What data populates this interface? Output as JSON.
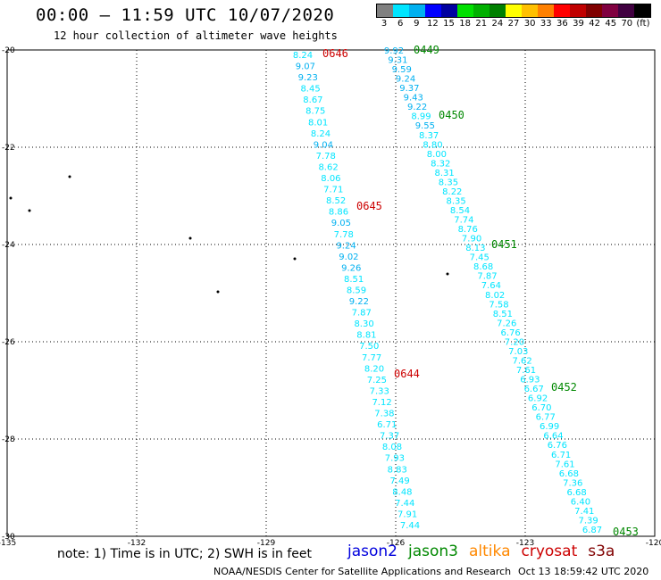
{
  "header": {
    "title": "00:00 — 11:59 UTC 10/07/2020",
    "subtitle": "12 hour collection of altimeter wave heights"
  },
  "legend": {
    "labels": [
      "3",
      "6",
      "9",
      "12",
      "15",
      "18",
      "21",
      "24",
      "27",
      "30",
      "33",
      "36",
      "39",
      "42",
      "45",
      "70",
      "(ft)"
    ],
    "colors": [
      "#808080",
      "#00e5ff",
      "#00b0f0",
      "#0000ff",
      "#0000a0",
      "#00e000",
      "#00b000",
      "#008000",
      "#ffff00",
      "#ffc000",
      "#ff8000",
      "#ff0000",
      "#c00000",
      "#800000",
      "#800040",
      "#400040",
      "#000000"
    ]
  },
  "axes": {
    "lat_labels": [
      "-20",
      "-22",
      "-24",
      "-26",
      "-28",
      "-30"
    ],
    "lon_labels": [
      "-135",
      "-132",
      "-129",
      "-126",
      "-123",
      "-120"
    ],
    "lat_range": [
      -30,
      -20
    ],
    "lon_range": [
      -135,
      -120
    ],
    "grid": true
  },
  "tracks": {
    "west": [
      "8.24",
      "9.07",
      "9.23",
      "8.45",
      "8.67",
      "8.75",
      "8.01",
      "8.24",
      "9.04",
      "7.78",
      "8.62",
      "8.06",
      "7.71",
      "8.52",
      "8.86",
      "9.05",
      "7.78",
      "9.24",
      "9.02",
      "9.26",
      "8.51",
      "8.59",
      "9.22",
      "7.87",
      "8.30",
      "8.81",
      "7.50",
      "7.77",
      "8.20",
      "7.25",
      "7.33",
      "7.12",
      "7.38",
      "6.71",
      "7.37",
      "8.08",
      "7.93",
      "8.83",
      "7.49",
      "8.48",
      "7.44",
      "7.91",
      "7.44"
    ],
    "east": [
      "9.92",
      "9.31",
      "9.59",
      "9.24",
      "9.37",
      "9.43",
      "9.22",
      "8.99",
      "9.55",
      "8.37",
      "8.80",
      "8.00",
      "8.32",
      "8.31",
      "8.35",
      "8.22",
      "8.35",
      "8.54",
      "7.74",
      "8.76",
      "7.90",
      "8.13",
      "7.45",
      "8.68",
      "7.87",
      "7.64",
      "8.02",
      "7.58",
      "8.51",
      "7.26",
      "6.76",
      "7.20",
      "7.03",
      "7.62",
      "7.61",
      "6.93",
      "6.67",
      "6.92",
      "6.70",
      "6.77",
      "6.99",
      "6.64",
      "6.76",
      "6.71",
      "7.61",
      "6.68",
      "7.36",
      "6.68",
      "6.40",
      "7.41",
      "7.39",
      "6.87"
    ]
  },
  "times": {
    "west": [
      {
        "label": "0646",
        "sat": "cryosat"
      },
      {
        "label": "0645",
        "sat": "cryosat"
      },
      {
        "label": "0644",
        "sat": "cryosat"
      }
    ],
    "east": [
      {
        "label": "0449",
        "sat": "jason3"
      },
      {
        "label": "0450",
        "sat": "jason3"
      },
      {
        "label": "0451",
        "sat": "jason3"
      },
      {
        "label": "0452",
        "sat": "jason3"
      },
      {
        "label": "0453",
        "sat": "jason3"
      }
    ]
  },
  "footer": {
    "note": "note: 1) Time is in UTC; 2) SWH is in feet",
    "credit": "NOAA/NESDIS Center for Satellite Applications and Research",
    "timestamp": "Oct 13 18:59:42 UTC 2020"
  },
  "satellites": [
    {
      "name": "jason2",
      "color": "#0000dd"
    },
    {
      "name": "jason3",
      "color": "#008800"
    },
    {
      "name": "altika",
      "color": "#ff8800"
    },
    {
      "name": "cryosat",
      "color": "#cc0000"
    },
    {
      "name": "s3a",
      "color": "#800000"
    }
  ]
}
